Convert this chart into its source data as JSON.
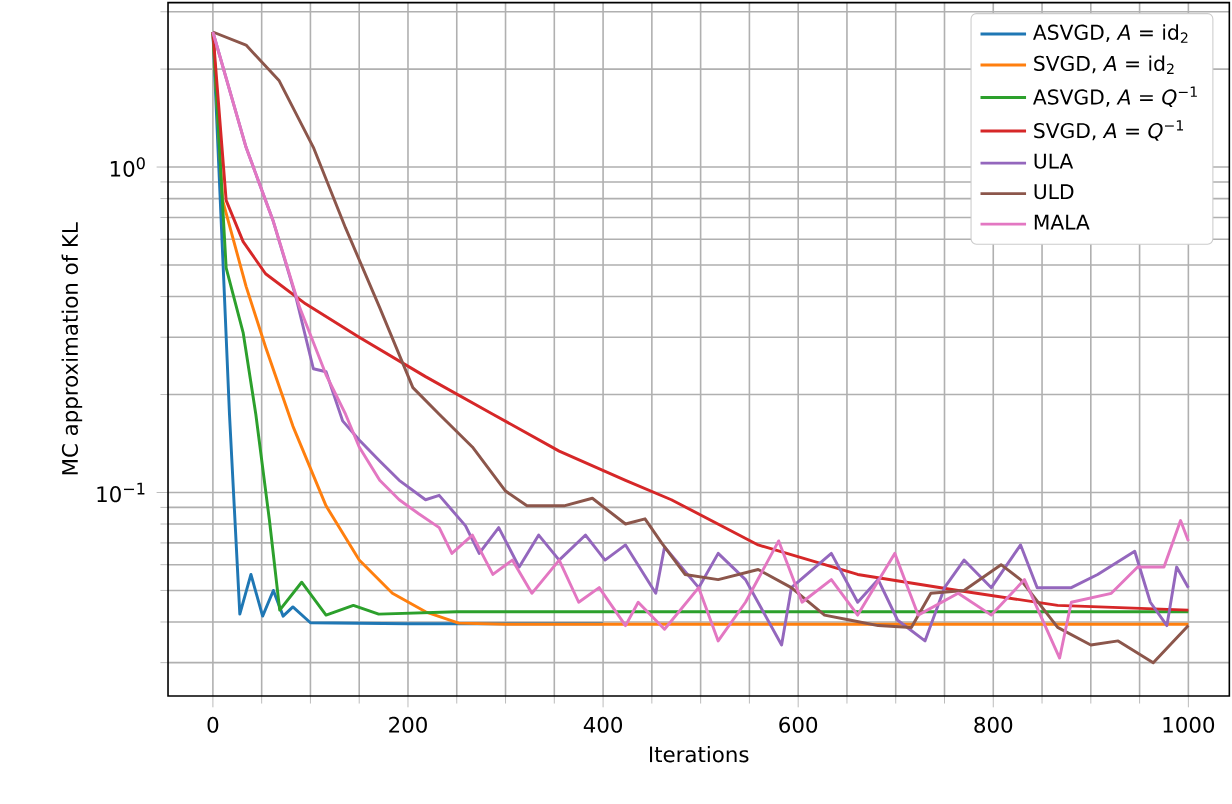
{
  "chart_data": {
    "type": "line",
    "xlabel": "Iterations",
    "ylabel": "MC approximation of KL",
    "xlim": [
      -46,
      1042
    ],
    "ylim": [
      0.0237,
      3.2
    ],
    "xticks": [
      0,
      200,
      400,
      600,
      800,
      1000
    ],
    "yticks": [
      {
        "value": 0.1,
        "label": "10$^{−1}$"
      },
      {
        "value": 1,
        "label": "10$^{0}$"
      }
    ],
    "log": "y",
    "grid": true,
    "legend": "top right",
    "marker": "none",
    "line_style": "solid",
    "series": [
      {
        "name": "ASVGD, *A* = id$_{2}$",
        "color": "#1f77b4",
        "x": [
          0,
          10.6,
          17,
          27.6,
          39,
          51,
          62,
          72,
          82,
          100,
          200,
          400
        ],
        "values": [
          2.6,
          0.49,
          0.174,
          0.0423,
          0.056,
          0.0417,
          0.05,
          0.0417,
          0.0445,
          0.0398,
          0.0395,
          0.0395
        ]
      },
      {
        "name": "SVGD, *A* = id$_{2}$",
        "color": "#ff7f0e",
        "x": [
          0,
          10,
          34,
          54,
          82,
          116,
          150,
          184,
          218,
          252,
          300,
          500,
          700,
          1000
        ],
        "values": [
          2.6,
          0.79,
          0.43,
          0.28,
          0.16,
          0.091,
          0.062,
          0.049,
          0.043,
          0.0397,
          0.0394,
          0.0394,
          0.0394,
          0.0394
        ]
      },
      {
        "name": "ASVGD, *A* = *Q*$^{−1}$",
        "color": "#2ca02c",
        "x": [
          0,
          6,
          13.6,
          31,
          44,
          58,
          68.5,
          91,
          116,
          144,
          170,
          250,
          500,
          750,
          1000
        ],
        "values": [
          2.6,
          1.25,
          0.49,
          0.31,
          0.174,
          0.082,
          0.0435,
          0.053,
          0.042,
          0.045,
          0.0423,
          0.043,
          0.043,
          0.043,
          0.043
        ]
      },
      {
        "name": "SVGD, *A* = *Q*$^{−1}$",
        "color": "#d62728",
        "x": [
          0,
          13.6,
          31,
          54,
          95,
          150,
          218,
          287,
          355,
          423,
          470,
          559,
          661,
          764,
          866,
          1000
        ],
        "values": [
          2.6,
          0.79,
          0.59,
          0.47,
          0.38,
          0.3,
          0.227,
          0.174,
          0.134,
          0.109,
          0.095,
          0.069,
          0.056,
          0.05,
          0.045,
          0.0435
        ]
      },
      {
        "name": "ULA",
        "color": "#9467bd",
        "x": [
          0,
          34,
          62,
          85,
          103,
          116,
          133,
          150,
          171,
          191,
          218,
          232,
          259,
          273,
          293,
          314,
          334,
          355,
          382,
          402,
          423,
          454,
          463,
          498,
          518,
          546,
          583,
          593,
          634,
          661,
          682,
          702,
          730,
          750,
          770,
          798,
          828,
          845,
          880,
          907,
          945,
          961,
          978,
          988,
          1000
        ],
        "values": [
          2.6,
          1.15,
          0.68,
          0.4,
          0.24,
          0.235,
          0.166,
          0.145,
          0.125,
          0.109,
          0.095,
          0.098,
          0.079,
          0.065,
          0.078,
          0.059,
          0.074,
          0.062,
          0.074,
          0.062,
          0.069,
          0.049,
          0.068,
          0.051,
          0.065,
          0.054,
          0.034,
          0.051,
          0.065,
          0.046,
          0.054,
          0.0405,
          0.035,
          0.051,
          0.062,
          0.051,
          0.069,
          0.051,
          0.051,
          0.056,
          0.066,
          0.046,
          0.039,
          0.059,
          0.051
        ]
      },
      {
        "name": "ULD",
        "color": "#8c564b",
        "x": [
          0,
          34,
          68,
          103,
          136,
          171,
          205,
          232,
          266,
          300,
          322,
          360,
          389,
          423,
          443,
          460,
          484,
          518,
          559,
          593,
          627,
          654,
          682,
          716,
          736,
          770,
          808,
          828,
          866,
          900,
          928,
          964,
          1000
        ],
        "values": [
          2.6,
          2.37,
          1.84,
          1.15,
          0.65,
          0.37,
          0.21,
          0.174,
          0.138,
          0.101,
          0.091,
          0.091,
          0.096,
          0.08,
          0.083,
          0.07,
          0.056,
          0.054,
          0.058,
          0.051,
          0.042,
          0.0405,
          0.039,
          0.0385,
          0.049,
          0.05,
          0.06,
          0.054,
          0.0385,
          0.034,
          0.035,
          0.03,
          0.039
        ]
      },
      {
        "name": "MALA",
        "color": "#e377c2",
        "x": [
          0,
          34,
          62,
          89,
          116,
          136,
          150,
          171,
          191,
          211,
          232,
          245,
          266,
          287,
          307,
          327,
          355,
          375,
          396,
          423,
          436,
          463,
          498,
          518,
          546,
          580,
          604,
          634,
          661,
          699,
          723,
          764,
          798,
          832,
          868,
          880,
          921,
          948,
          975,
          992,
          1000
        ],
        "values": [
          2.6,
          1.15,
          0.68,
          0.37,
          0.23,
          0.174,
          0.138,
          0.109,
          0.095,
          0.086,
          0.078,
          0.065,
          0.074,
          0.056,
          0.062,
          0.049,
          0.062,
          0.046,
          0.051,
          0.039,
          0.046,
          0.038,
          0.051,
          0.035,
          0.046,
          0.071,
          0.046,
          0.054,
          0.042,
          0.065,
          0.042,
          0.049,
          0.042,
          0.054,
          0.031,
          0.046,
          0.049,
          0.059,
          0.059,
          0.082,
          0.071
        ]
      }
    ]
  }
}
